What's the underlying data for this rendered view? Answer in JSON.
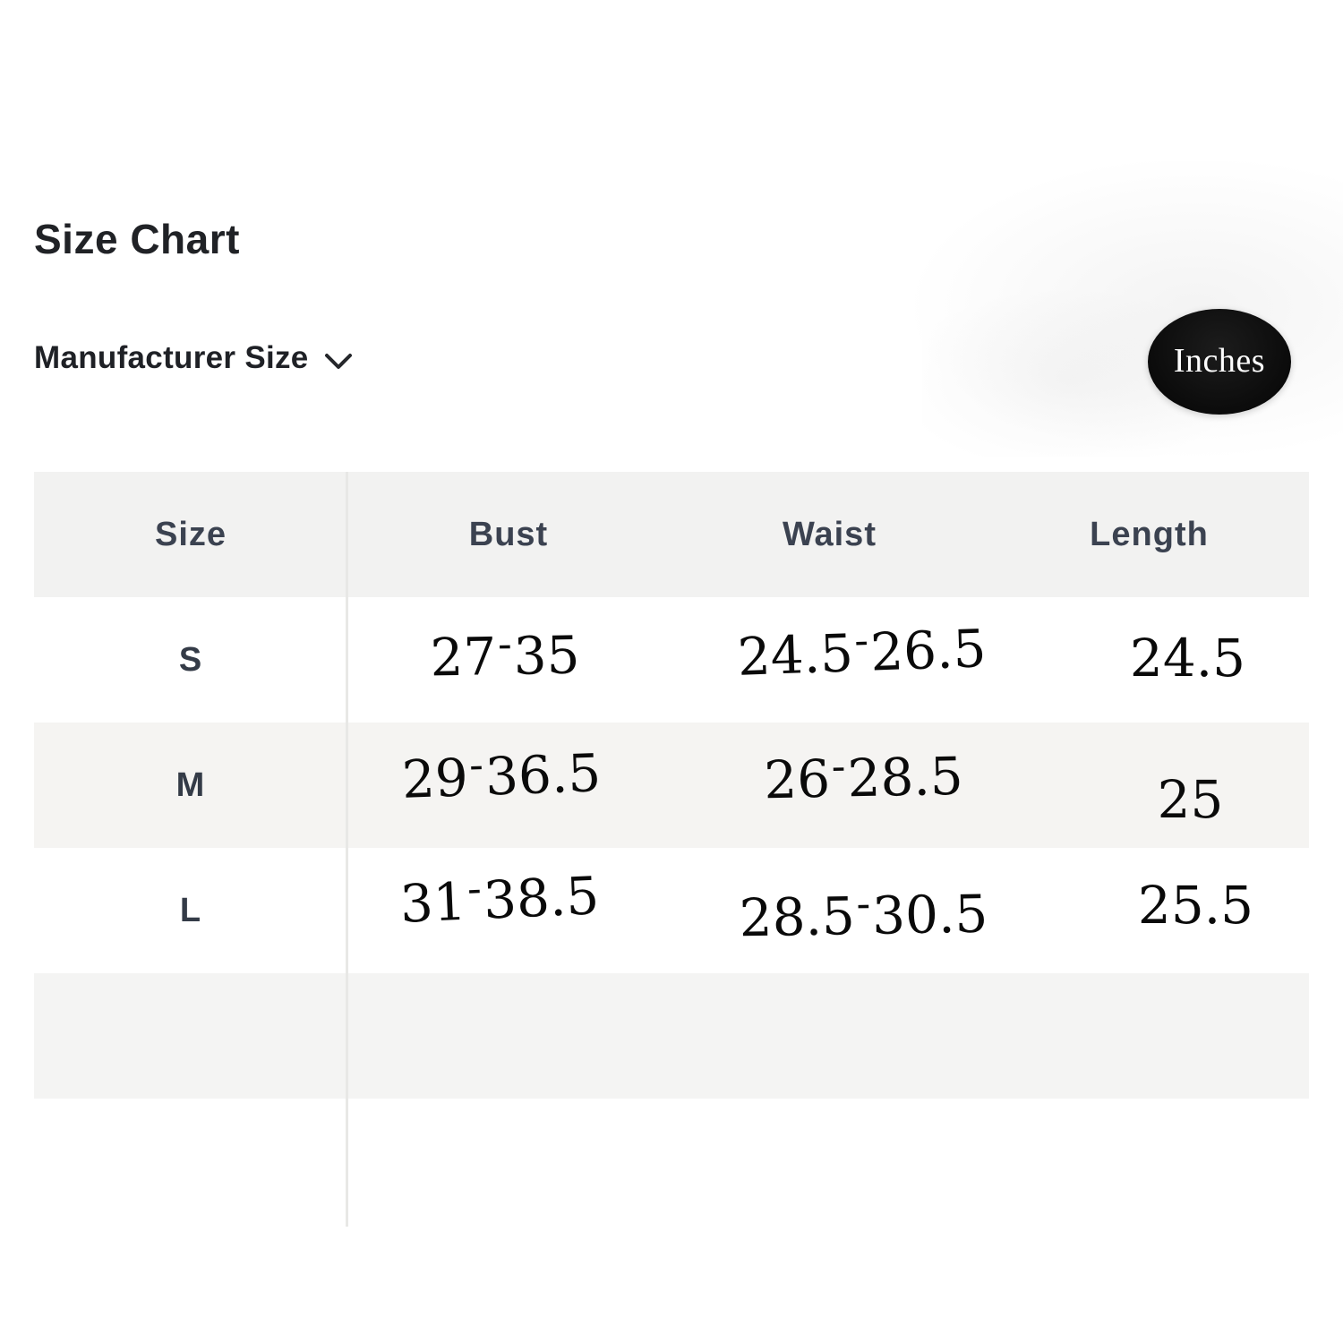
{
  "page": {
    "title": "Size Chart",
    "size_selector": {
      "label": "Manufacturer Size",
      "icon": "chevron-down-icon"
    },
    "unit_badge": {
      "label": "Inches"
    }
  },
  "table": {
    "columns": [
      "Size",
      "Bust",
      "Waist",
      "Length"
    ],
    "rows": [
      {
        "size": "S",
        "bust": "27-35",
        "waist": "24.5-26.5",
        "length": "24.5"
      },
      {
        "size": "M",
        "bust": "29-36.5",
        "waist": "26-28.5",
        "length": "25"
      },
      {
        "size": "L",
        "bust": "31-38.5",
        "waist": "28.5-30.5",
        "length": "25.5"
      }
    ],
    "unit": "Inches"
  },
  "colors": {
    "badge_bg": "#0c0c0c",
    "badge_text": "#fdfdfd",
    "header_row_bg": "#f2f2f1",
    "alt_row_bg": "#f5f4f2",
    "empty_row_bg": "#f4f4f3",
    "header_text": "#3b4250",
    "title_text": "#202226",
    "number_text": "#0a0a0a",
    "divider": "#e8e8e6"
  }
}
